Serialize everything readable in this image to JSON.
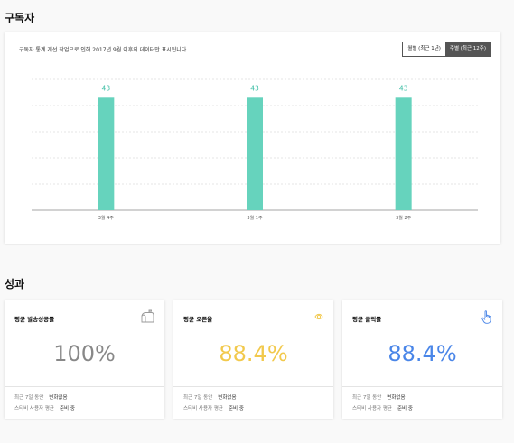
{
  "sections": {
    "subscribers_title": "구독자",
    "performance_title": "성과"
  },
  "chart_card": {
    "notice": "구독자 통계 개선 작업으로 인해 2017년 9월 이후의 데이터만 표시됩니다.",
    "toggle": {
      "monthly_label": "월별 (최근 1년)",
      "weekly_label": "주별 (최근 12주)",
      "active": "weekly"
    }
  },
  "chart_data": {
    "type": "bar",
    "categories": [
      "3월 4주",
      "3월 1주",
      "3월 2주"
    ],
    "values": [
      43,
      43,
      43
    ],
    "title": "",
    "xlabel": "",
    "ylabel": "",
    "ylim": [
      0,
      50
    ],
    "grid": true,
    "bar_color": "#66d3bd",
    "label_color": "#3fbfa6"
  },
  "metrics": [
    {
      "title": "평균 발송성공률",
      "value": "100%",
      "color": "#888888",
      "icon": "mailbox-icon",
      "row1_label": "최근 7일 동안",
      "row1_value": "변화없음",
      "row2_label": "스티비 사용자 평균",
      "row2_value": "준비 중"
    },
    {
      "title": "평균 오픈율",
      "value": "88.4%",
      "color": "#f2c94c",
      "icon": "eye-icon",
      "row1_label": "최근 7일 동안",
      "row1_value": "변화없음",
      "row2_label": "스티비 사용자 평균",
      "row2_value": "준비 중"
    },
    {
      "title": "평균 클릭률",
      "value": "88.4%",
      "color": "#4a86e8",
      "icon": "pointer-hand-icon",
      "row1_label": "최근 7일 동안",
      "row1_value": "변화없음",
      "row2_label": "스티비 사용자 평균",
      "row2_value": "준비 중"
    }
  ]
}
